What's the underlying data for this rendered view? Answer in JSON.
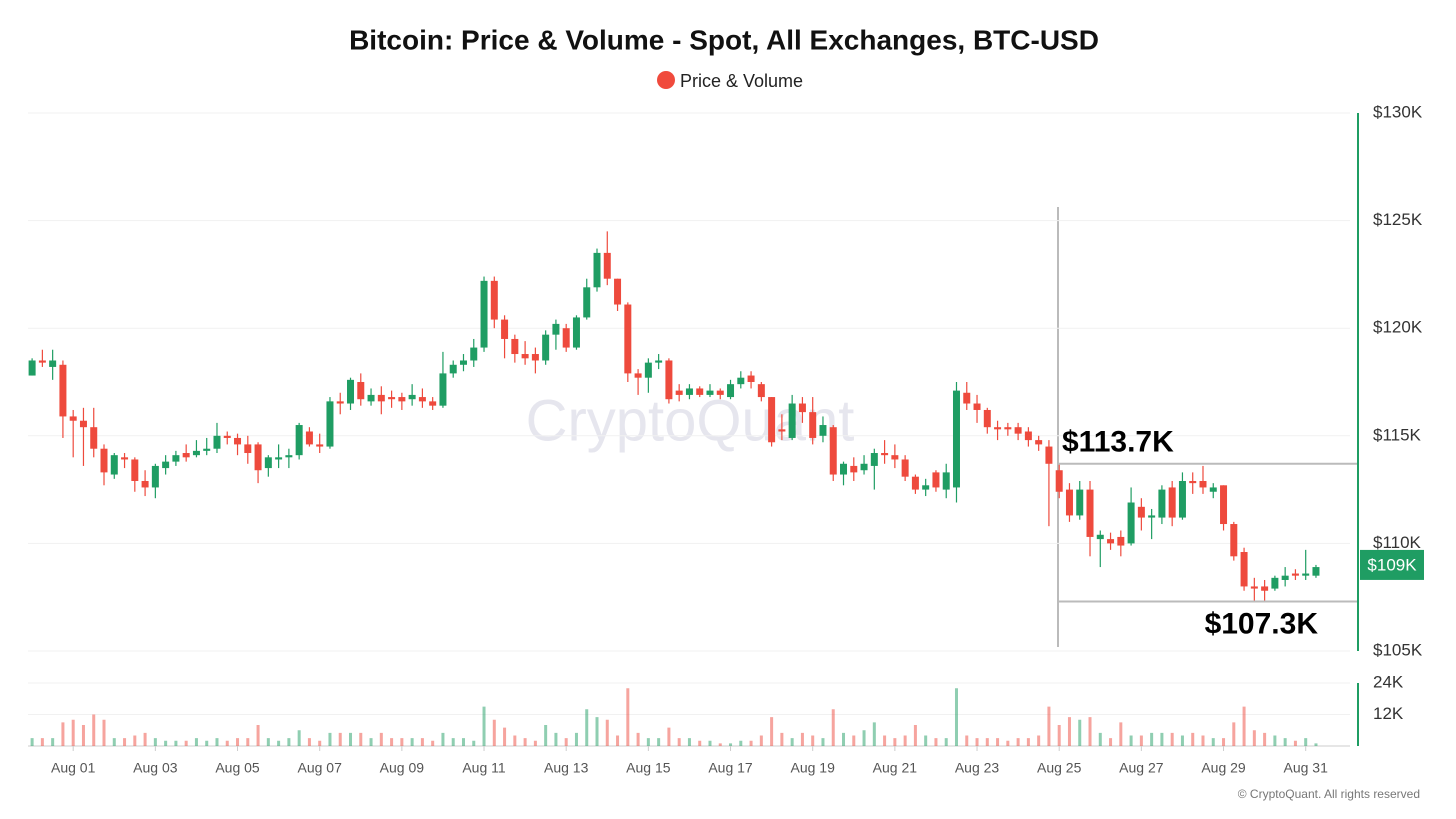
{
  "chart_data": {
    "type": "candlestick",
    "title": "Bitcoin: Price & Volume - Spot, All Exchanges, BTC-USD",
    "legend": "Price & Volume",
    "legend_color": "#f04a3c",
    "watermark": "CryptoQuant",
    "footer": "© CryptoQuant. All rights reserved",
    "up_color": "#1f9d63",
    "down_color": "#ee4a3d",
    "grid": true,
    "x": [
      0,
      0.25,
      0.5,
      0.75,
      1,
      1.25,
      1.5,
      1.75,
      2,
      2.25,
      2.5,
      2.75,
      3,
      3.25,
      3.5,
      3.75,
      4,
      4.25,
      4.5,
      4.75,
      5,
      5.25,
      5.5,
      5.75,
      6,
      6.25,
      6.5,
      6.75,
      7,
      7.25,
      7.5,
      7.75,
      8,
      8.25,
      8.5,
      8.75,
      9,
      9.25,
      9.5,
      9.75,
      10,
      10.25,
      10.5,
      10.75,
      11,
      11.25,
      11.5,
      11.75,
      12,
      12.25,
      12.5,
      12.75,
      13,
      13.25,
      13.5,
      13.75,
      14,
      14.25,
      14.5,
      14.75,
      15,
      15.25,
      15.5,
      15.75,
      16,
      16.25,
      16.5,
      16.75,
      17,
      17.25,
      17.5,
      17.75,
      18,
      18.25,
      18.5,
      18.75,
      19,
      19.25,
      19.5,
      19.75,
      20,
      20.25,
      20.5,
      20.75,
      21,
      21.25,
      21.5,
      21.75,
      22,
      22.25,
      22.5,
      22.75,
      23,
      23.25,
      23.5,
      23.75,
      24,
      24.25,
      24.5,
      24.75,
      25,
      25.25,
      25.5,
      25.75,
      26,
      26.25,
      26.5,
      26.75,
      27,
      27.25,
      27.5,
      27.75,
      28,
      28.25,
      28.5,
      28.75,
      29,
      29.25,
      29.5,
      29.75,
      30,
      30.25,
      30.5,
      30.75,
      31,
      31.25
    ],
    "open": [
      117.8,
      118.5,
      118.2,
      118.3,
      115.9,
      115.7,
      115.4,
      114.4,
      113.2,
      114.0,
      113.9,
      112.9,
      112.6,
      113.5,
      113.8,
      114.2,
      114.1,
      114.3,
      114.4,
      115.0,
      114.9,
      114.6,
      114.6,
      113.5,
      113.9,
      114.0,
      114.1,
      115.2,
      114.6,
      114.5,
      116.6,
      116.5,
      117.5,
      116.6,
      116.9,
      116.8,
      116.8,
      116.7,
      116.8,
      116.6,
      116.4,
      117.9,
      118.3,
      118.5,
      119.1,
      122.2,
      120.4,
      119.5,
      118.8,
      118.8,
      118.5,
      119.7,
      120.0,
      119.1,
      120.5,
      121.9,
      123.5,
      122.3,
      121.1,
      117.9,
      117.7,
      118.4,
      118.5,
      117.1,
      116.9,
      117.2,
      116.9,
      117.1,
      116.8,
      117.4,
      117.8,
      117.4,
      116.8,
      115.3,
      114.9,
      116.5,
      116.1,
      115.0,
      115.4,
      113.2,
      113.6,
      113.4,
      113.6,
      114.2,
      114.1,
      113.9,
      113.1,
      112.5,
      113.3,
      112.5,
      112.6,
      117.0,
      116.5,
      116.2,
      115.4,
      115.4,
      115.4,
      115.2,
      114.8,
      114.5,
      113.4,
      112.5,
      111.3,
      112.5,
      110.2,
      110.2,
      110.3,
      110.0,
      111.7,
      111.2,
      111.2,
      112.6,
      111.2,
      112.9,
      112.9,
      112.4,
      112.7,
      110.9,
      109.6,
      108.0,
      108.0,
      107.9,
      108.3,
      108.6,
      108.5,
      108.5
    ],
    "high": [
      118.6,
      119.0,
      119.0,
      118.5,
      116.2,
      116.3,
      116.3,
      114.6,
      114.2,
      114.2,
      114.0,
      113.4,
      113.7,
      114.1,
      114.3,
      114.6,
      114.8,
      114.9,
      115.6,
      115.2,
      115.1,
      115.0,
      114.7,
      114.1,
      114.6,
      114.4,
      115.6,
      115.4,
      115.1,
      116.8,
      117.0,
      117.7,
      117.9,
      117.2,
      117.3,
      117.1,
      117.0,
      117.4,
      117.2,
      116.8,
      118.9,
      118.5,
      118.8,
      119.5,
      122.4,
      122.4,
      120.6,
      119.7,
      119.4,
      119.1,
      119.9,
      120.4,
      120.2,
      120.6,
      122.3,
      123.7,
      124.5,
      122.3,
      121.2,
      118.1,
      118.6,
      118.8,
      118.6,
      117.4,
      117.4,
      117.3,
      117.4,
      117.2,
      117.6,
      118.0,
      118.0,
      117.5,
      116.8,
      116.0,
      116.9,
      116.8,
      116.8,
      115.9,
      115.5,
      113.8,
      114.0,
      114.1,
      114.4,
      114.8,
      114.6,
      114.1,
      113.2,
      113.0,
      113.4,
      113.7,
      117.5,
      117.5,
      116.9,
      116.3,
      115.7,
      115.6,
      115.6,
      115.4,
      115.0,
      114.8,
      113.7,
      112.8,
      112.9,
      112.9,
      110.6,
      110.5,
      110.6,
      112.6,
      112.1,
      111.6,
      112.7,
      112.9,
      113.3,
      113.3,
      113.6,
      112.8,
      112.7,
      111.0,
      109.8,
      108.4,
      108.3,
      108.5,
      108.9,
      108.8,
      109.7,
      109.0
    ],
    "low": [
      117.8,
      118.2,
      117.6,
      114.9,
      114.0,
      113.6,
      114.0,
      112.7,
      113.0,
      113.5,
      112.4,
      112.2,
      112.1,
      113.2,
      113.6,
      113.8,
      114.0,
      114.1,
      114.2,
      114.6,
      114.1,
      113.7,
      112.8,
      113.1,
      113.5,
      113.5,
      113.9,
      114.5,
      114.2,
      114.4,
      116.0,
      116.2,
      116.4,
      116.4,
      116.0,
      116.3,
      116.2,
      116.4,
      116.3,
      116.2,
      116.3,
      117.7,
      118.0,
      118.2,
      118.9,
      120.0,
      118.6,
      118.4,
      118.3,
      117.9,
      118.3,
      119.0,
      118.9,
      119.0,
      120.4,
      121.7,
      122.0,
      120.8,
      117.5,
      116.9,
      117.0,
      118.1,
      116.5,
      116.6,
      116.7,
      116.8,
      116.8,
      116.7,
      116.7,
      117.2,
      117.2,
      116.6,
      114.5,
      114.8,
      114.8,
      115.6,
      114.6,
      114.7,
      112.9,
      112.7,
      112.9,
      113.2,
      112.5,
      113.7,
      113.5,
      112.9,
      112.3,
      112.2,
      112.4,
      112.1,
      111.9,
      116.2,
      115.6,
      115.1,
      114.8,
      115.0,
      114.8,
      114.5,
      114.3,
      110.8,
      112.1,
      111.0,
      111.1,
      109.4,
      108.9,
      109.7,
      109.4,
      109.9,
      110.6,
      110.2,
      110.9,
      110.8,
      111.1,
      112.3,
      112.3,
      112.1,
      110.6,
      109.2,
      107.8,
      107.3,
      107.3,
      107.8,
      108.0,
      108.3,
      108.3,
      108.4
    ],
    "close": [
      118.5,
      118.4,
      118.5,
      115.9,
      115.7,
      115.4,
      114.4,
      113.3,
      114.1,
      113.9,
      112.9,
      112.6,
      113.6,
      113.8,
      114.1,
      114.0,
      114.3,
      114.4,
      115.0,
      114.9,
      114.6,
      114.2,
      113.4,
      114.0,
      114.0,
      114.1,
      115.5,
      114.6,
      114.5,
      116.6,
      116.5,
      117.6,
      116.7,
      116.9,
      116.6,
      116.7,
      116.6,
      116.9,
      116.6,
      116.4,
      117.9,
      118.3,
      118.5,
      119.1,
      122.2,
      120.4,
      119.5,
      118.8,
      118.6,
      118.5,
      119.7,
      120.2,
      119.1,
      120.5,
      121.9,
      123.5,
      122.3,
      121.1,
      117.9,
      117.7,
      118.4,
      118.5,
      116.7,
      116.9,
      117.2,
      116.9,
      117.1,
      116.9,
      117.4,
      117.7,
      117.5,
      116.8,
      114.7,
      115.2,
      116.5,
      116.1,
      114.9,
      115.5,
      113.2,
      113.7,
      113.3,
      113.7,
      114.2,
      114.1,
      113.9,
      113.1,
      112.5,
      112.7,
      112.6,
      113.3,
      117.1,
      116.5,
      116.2,
      115.4,
      115.3,
      115.3,
      115.1,
      114.8,
      114.6,
      113.7,
      112.4,
      111.3,
      112.5,
      110.3,
      110.4,
      110.0,
      109.9,
      111.9,
      111.2,
      111.3,
      112.5,
      111.2,
      112.9,
      112.8,
      112.6,
      112.6,
      110.9,
      109.4,
      108.0,
      107.9,
      107.8,
      108.4,
      108.5,
      108.5,
      108.6,
      108.9
    ],
    "volume": [
      3,
      3,
      3,
      9,
      10,
      8,
      12,
      10,
      3,
      3,
      4,
      5,
      3,
      2,
      2,
      2,
      3,
      2,
      3,
      2,
      3,
      3,
      8,
      3,
      2,
      3,
      6,
      3,
      2,
      5,
      5,
      5,
      5,
      3,
      5,
      3,
      3,
      3,
      3,
      2,
      5,
      3,
      3,
      2,
      15,
      10,
      7,
      4,
      3,
      2,
      8,
      5,
      3,
      5,
      14,
      11,
      10,
      4,
      22,
      5,
      3,
      3,
      7,
      3,
      3,
      2,
      2,
      1,
      1,
      2,
      2,
      4,
      11,
      5,
      3,
      5,
      4,
      3,
      14,
      5,
      4,
      6,
      9,
      4,
      3,
      4,
      8,
      4,
      3,
      3,
      22,
      4,
      3,
      3,
      3,
      2,
      3,
      3,
      4,
      15,
      8,
      11,
      10,
      11,
      5,
      3,
      9,
      4,
      4,
      5,
      5,
      5,
      4,
      5,
      4,
      3,
      3,
      9,
      15,
      6,
      5,
      4,
      3,
      2,
      3,
      1
    ],
    "xlim": [
      -0.1,
      32.2
    ],
    "xticks": [
      {
        "value": 1,
        "label": "Aug 01"
      },
      {
        "value": 3,
        "label": "Aug 03"
      },
      {
        "value": 5,
        "label": "Aug 05"
      },
      {
        "value": 7,
        "label": "Aug 07"
      },
      {
        "value": 9,
        "label": "Aug 09"
      },
      {
        "value": 11,
        "label": "Aug 11"
      },
      {
        "value": 13,
        "label": "Aug 13"
      },
      {
        "value": 15,
        "label": "Aug 15"
      },
      {
        "value": 17,
        "label": "Aug 17"
      },
      {
        "value": 19,
        "label": "Aug 19"
      },
      {
        "value": 21,
        "label": "Aug 21"
      },
      {
        "value": 23,
        "label": "Aug 23"
      },
      {
        "value": 25,
        "label": "Aug 25"
      },
      {
        "value": 27,
        "label": "Aug 27"
      },
      {
        "value": 29,
        "label": "Aug 29"
      },
      {
        "value": 31,
        "label": "Aug 31"
      }
    ],
    "ylim": [
      105,
      130
    ],
    "yticks": [
      {
        "value": 105,
        "label": "$105K"
      },
      {
        "value": 110,
        "label": "$110K"
      },
      {
        "value": 115,
        "label": "$115K"
      },
      {
        "value": 120,
        "label": "$120K"
      },
      {
        "value": 125,
        "label": "$125K"
      },
      {
        "value": 130,
        "label": "$130K"
      }
    ],
    "y2lim": [
      0,
      24
    ],
    "y2ticks": [
      {
        "value": 12,
        "label": "12K"
      },
      {
        "value": 24,
        "label": "24K"
      }
    ],
    "last_price": {
      "value": 109,
      "label": "$109K"
    },
    "annotations": [
      {
        "value": 113.7,
        "label": "$113.7K"
      },
      {
        "value": 107.3,
        "label": "$107.3K"
      }
    ]
  }
}
